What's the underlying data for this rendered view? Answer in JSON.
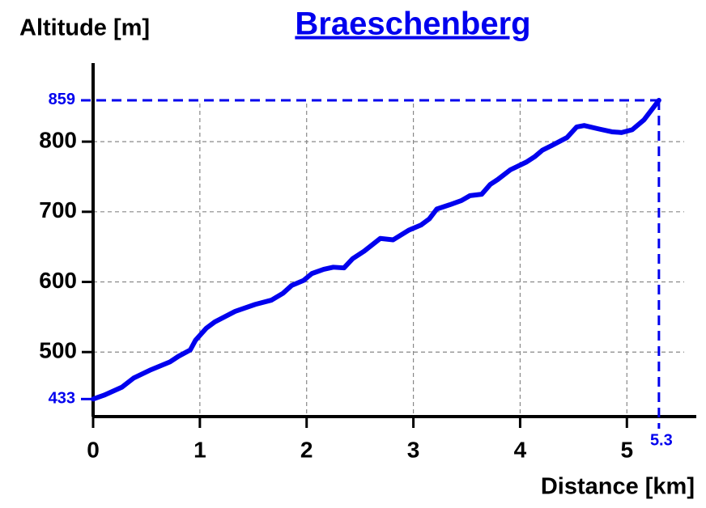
{
  "chart_data": {
    "type": "line",
    "title": "Braeschenberg",
    "y_label": "Altitude [m]",
    "x_label": "Distance [km]",
    "x": [
      0,
      0.11,
      0.27,
      0.38,
      0.53,
      0.72,
      0.8,
      0.91,
      0.96,
      1.06,
      1.14,
      1.33,
      1.52,
      1.67,
      1.78,
      1.86,
      1.97,
      2.05,
      2.16,
      2.25,
      2.35,
      2.43,
      2.54,
      2.69,
      2.81,
      2.96,
      3.07,
      3.15,
      3.22,
      3.34,
      3.45,
      3.53,
      3.64,
      3.72,
      3.79,
      3.91,
      4.06,
      4.14,
      4.21,
      4.29,
      4.44,
      4.53,
      4.6,
      4.74,
      4.86,
      4.95,
      5.05,
      5.16,
      5.3
    ],
    "series": [
      {
        "color": "#0000ee",
        "values": [
          433,
          439,
          450,
          463,
          474,
          486,
          494,
          503,
          517,
          534,
          543,
          558,
          568,
          574,
          584,
          595,
          602,
          612,
          618,
          621,
          620,
          633,
          644,
          662,
          660,
          674,
          681,
          690,
          704,
          710,
          716,
          723,
          725,
          739,
          746,
          760,
          771,
          779,
          788,
          794,
          806,
          821,
          823,
          818,
          814,
          813,
          817,
          831,
          859
        ]
      }
    ],
    "min_altitude": 433,
    "max_altitude": 859,
    "total_distance": 5.3,
    "xlim": [
      0,
      5.65
    ],
    "ylim": [
      408,
      912
    ],
    "xticks": [
      0,
      1,
      2,
      3,
      4,
      5
    ],
    "yticks": [
      500,
      600,
      700,
      800
    ],
    "grid": true
  }
}
